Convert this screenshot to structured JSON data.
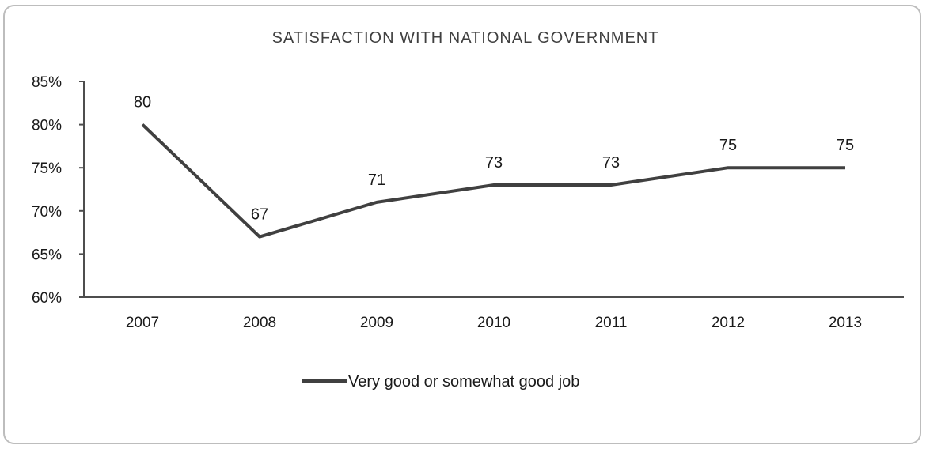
{
  "chart_data": {
    "type": "line",
    "title": "SATISFACTION WITH NATIONAL GOVERNMENT",
    "xlabel": "",
    "ylabel": "",
    "categories": [
      "2007",
      "2008",
      "2009",
      "2010",
      "2011",
      "2012",
      "2013"
    ],
    "series": [
      {
        "name": "Very good  or somewhat good job",
        "values": [
          80,
          67,
          71,
          73,
          73,
          75,
          75
        ],
        "data_labels": [
          "80",
          "67",
          "71",
          "73",
          "73",
          "75",
          "75"
        ]
      }
    ],
    "ylim": [
      60,
      85
    ],
    "yticks": [
      60,
      65,
      70,
      75,
      80,
      85
    ],
    "ytick_labels": [
      "60%",
      "65%",
      "70%",
      "75%",
      "80%",
      "85%"
    ],
    "grid": false,
    "legend_position": "bottom",
    "colors": {
      "series": "#404040",
      "axis": "#4d4d4d"
    }
  }
}
